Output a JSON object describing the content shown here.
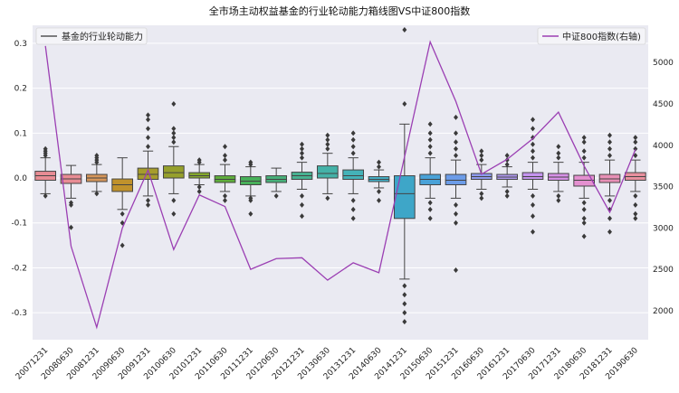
{
  "chart_data": {
    "type": "box+line",
    "title": "全市场主动权益基金的行业轮动能力箱线图VS中证800指数",
    "legend_left": "基金的行业轮动能力",
    "legend_right": "中证800指数(右轴)",
    "categories": [
      "20071231",
      "20080630",
      "20081231",
      "20090630",
      "20091231",
      "20100630",
      "20101231",
      "20110630",
      "20111231",
      "20120630",
      "20121231",
      "20130630",
      "20131231",
      "20140630",
      "20141231",
      "20150630",
      "20151231",
      "20160630",
      "20161231",
      "20170630",
      "20171231",
      "20180630",
      "20181231",
      "20190630"
    ],
    "ylim_left": [
      -0.36,
      0.34
    ],
    "yticks_left": [
      -0.3,
      -0.2,
      -0.1,
      0.0,
      0.1,
      0.2,
      0.3
    ],
    "ytick_labels_left": [
      "-0.3",
      "-0.2",
      "-0.1",
      "0.0",
      "0.1",
      "0.2",
      "0.3"
    ],
    "ylim_right": [
      1650,
      5450
    ],
    "yticks_right": [
      2000,
      2500,
      3000,
      3500,
      4000,
      4500,
      5000
    ],
    "ytick_labels_right": [
      "2000",
      "2500",
      "3000",
      "3500",
      "4000",
      "4500",
      "5000"
    ],
    "colors": {
      "line": "#9b3fb3",
      "background": "#eaeaf2",
      "grid": "#ffffff",
      "box_edge": "#444444"
    },
    "box_colors": [
      "#e88c94",
      "#e88c94",
      "#d6965a",
      "#c0922c",
      "#a69c2c",
      "#96a02c",
      "#84a82c",
      "#5fae3c",
      "#48b05a",
      "#48b07a",
      "#48b292",
      "#44b2a8",
      "#44b2b8",
      "#44afc6",
      "#3ea6c8",
      "#4aa2d8",
      "#6c9ce8",
      "#8e9aee",
      "#ae98ee",
      "#c494ee",
      "#d690e6",
      "#e490d0",
      "#e890b6",
      "#e8909e"
    ],
    "boxes": [
      {
        "q1": -0.005,
        "median": 0.005,
        "q3": 0.015,
        "whislo": -0.035,
        "whishi": 0.045,
        "outliers": [
          0.05,
          0.055,
          0.06,
          0.065,
          -0.04
        ]
      },
      {
        "q1": -0.012,
        "median": -0.002,
        "q3": 0.008,
        "whislo": -0.045,
        "whishi": 0.028,
        "outliers": [
          -0.055,
          -0.06,
          -0.11
        ]
      },
      {
        "q1": -0.008,
        "median": 0.0,
        "q3": 0.008,
        "whislo": -0.03,
        "whishi": 0.03,
        "outliers": [
          0.035,
          0.04,
          0.045,
          0.05,
          -0.035
        ]
      },
      {
        "q1": -0.03,
        "median": -0.015,
        "q3": -0.002,
        "whislo": -0.07,
        "whishi": 0.045,
        "outliers": [
          -0.08,
          -0.1,
          -0.15
        ]
      },
      {
        "q1": -0.003,
        "median": 0.008,
        "q3": 0.022,
        "whislo": -0.04,
        "whishi": 0.06,
        "outliers": [
          0.07,
          0.09,
          0.11,
          0.13,
          0.14,
          -0.05,
          -0.06
        ]
      },
      {
        "q1": 0.0,
        "median": 0.012,
        "q3": 0.027,
        "whislo": -0.035,
        "whishi": 0.07,
        "outliers": [
          0.08,
          0.09,
          0.1,
          0.11,
          0.165,
          -0.05,
          -0.08
        ]
      },
      {
        "q1": 0.0,
        "median": 0.005,
        "q3": 0.012,
        "whislo": -0.015,
        "whishi": 0.03,
        "outliers": [
          0.035,
          0.04,
          -0.02,
          -0.03
        ]
      },
      {
        "q1": -0.01,
        "median": -0.003,
        "q3": 0.005,
        "whislo": -0.03,
        "whishi": 0.03,
        "outliers": [
          0.04,
          0.05,
          0.07,
          -0.04,
          -0.05
        ]
      },
      {
        "q1": -0.015,
        "median": -0.007,
        "q3": 0.003,
        "whislo": -0.04,
        "whishi": 0.025,
        "outliers": [
          0.03,
          0.035,
          -0.045,
          -0.05,
          -0.08
        ]
      },
      {
        "q1": -0.01,
        "median": -0.003,
        "q3": 0.005,
        "whislo": -0.03,
        "whishi": 0.022,
        "outliers": [
          -0.04
        ]
      },
      {
        "q1": -0.003,
        "median": 0.005,
        "q3": 0.013,
        "whislo": -0.025,
        "whishi": 0.035,
        "outliers": [
          0.045,
          0.055,
          0.065,
          0.075,
          -0.04,
          -0.06,
          -0.085
        ]
      },
      {
        "q1": 0.0,
        "median": 0.01,
        "q3": 0.027,
        "whislo": -0.035,
        "whishi": 0.055,
        "outliers": [
          0.065,
          0.075,
          0.085,
          0.095,
          -0.045
        ]
      },
      {
        "q1": -0.003,
        "median": 0.005,
        "q3": 0.018,
        "whislo": -0.035,
        "whishi": 0.045,
        "outliers": [
          0.055,
          0.07,
          0.085,
          0.1,
          -0.05,
          -0.07,
          -0.09
        ]
      },
      {
        "q1": -0.008,
        "median": -0.003,
        "q3": 0.003,
        "whislo": -0.022,
        "whishi": 0.018,
        "outliers": [
          0.025,
          0.035,
          -0.03,
          -0.05
        ]
      },
      {
        "q1": -0.09,
        "median": -0.035,
        "q3": 0.005,
        "whislo": -0.225,
        "whishi": 0.12,
        "outliers": [
          0.33,
          0.165,
          -0.24,
          -0.26,
          -0.28,
          -0.3,
          -0.32
        ]
      },
      {
        "q1": -0.015,
        "median": -0.003,
        "q3": 0.008,
        "whislo": -0.045,
        "whishi": 0.045,
        "outliers": [
          0.055,
          0.07,
          0.085,
          0.1,
          0.12,
          -0.055,
          -0.07,
          -0.09
        ]
      },
      {
        "q1": -0.015,
        "median": -0.005,
        "q3": 0.008,
        "whislo": -0.045,
        "whishi": 0.04,
        "outliers": [
          0.05,
          0.065,
          0.08,
          0.1,
          0.135,
          -0.06,
          -0.08,
          -0.1,
          -0.205
        ]
      },
      {
        "q1": -0.003,
        "median": 0.003,
        "q3": 0.01,
        "whislo": -0.025,
        "whishi": 0.03,
        "outliers": [
          0.04,
          0.05,
          0.06,
          -0.035,
          -0.045
        ]
      },
      {
        "q1": -0.003,
        "median": 0.002,
        "q3": 0.008,
        "whislo": -0.02,
        "whishi": 0.025,
        "outliers": [
          0.03,
          0.04,
          0.05,
          -0.03,
          -0.04
        ]
      },
      {
        "q1": -0.003,
        "median": 0.003,
        "q3": 0.012,
        "whislo": -0.025,
        "whishi": 0.035,
        "outliers": [
          0.045,
          0.06,
          0.075,
          0.09,
          0.11,
          0.13,
          -0.04,
          -0.06,
          -0.085,
          -0.12
        ]
      },
      {
        "q1": -0.005,
        "median": 0.002,
        "q3": 0.01,
        "whislo": -0.03,
        "whishi": 0.035,
        "outliers": [
          0.045,
          0.055,
          0.07,
          -0.04,
          -0.05
        ]
      },
      {
        "q1": -0.018,
        "median": -0.005,
        "q3": 0.006,
        "whislo": -0.045,
        "whishi": 0.035,
        "outliers": [
          0.045,
          0.06,
          0.08,
          0.09,
          -0.055,
          -0.07,
          -0.09,
          -0.1,
          -0.13
        ]
      },
      {
        "q1": -0.01,
        "median": -0.002,
        "q3": 0.008,
        "whislo": -0.04,
        "whishi": 0.04,
        "outliers": [
          0.05,
          0.065,
          0.08,
          0.095,
          -0.05,
          -0.07,
          -0.09,
          -0.12
        ]
      },
      {
        "q1": -0.005,
        "median": 0.003,
        "q3": 0.012,
        "whislo": -0.03,
        "whishi": 0.04,
        "outliers": [
          0.05,
          0.065,
          0.08,
          0.09,
          -0.04,
          -0.06,
          -0.08,
          -0.09
        ]
      }
    ],
    "line_values": [
      5200,
      2780,
      1800,
      3000,
      3700,
      2740,
      3400,
      3260,
      2500,
      2630,
      2640,
      2370,
      2580,
      2460,
      3860,
      5250,
      4530,
      3650,
      3830,
      4080,
      4400,
      3750,
      3190,
      3950
    ]
  }
}
